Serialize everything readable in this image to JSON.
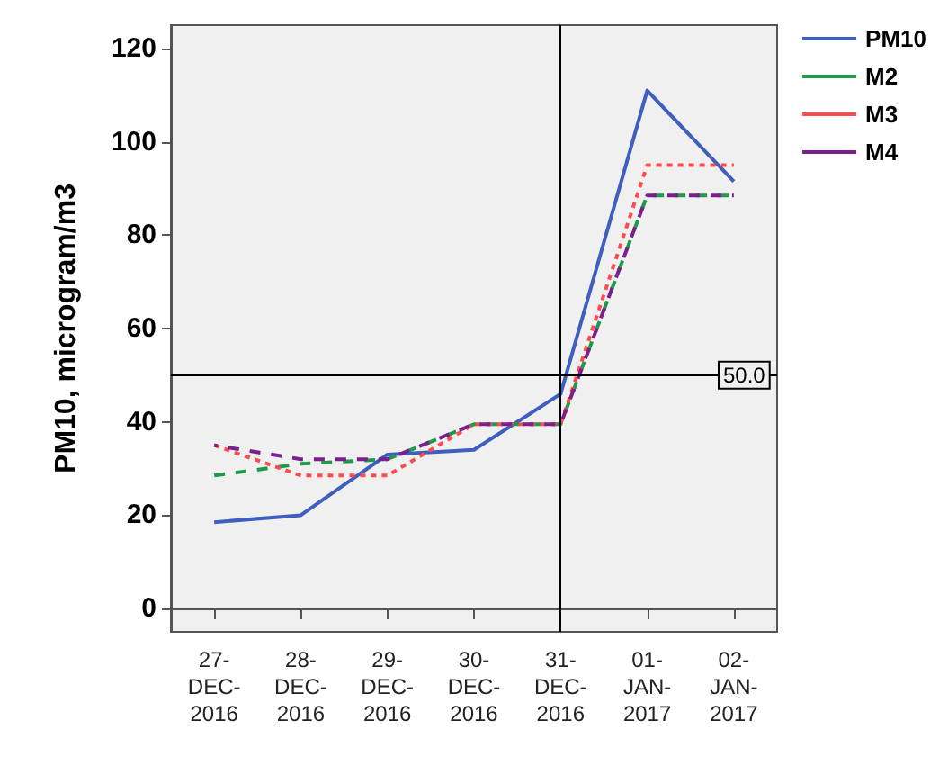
{
  "chart_data": {
    "type": "line",
    "ylabel": "PM10, microgram/m3",
    "categories": [
      "27-\nDEC-\n2016",
      "28-\nDEC-\n2016",
      "29-\nDEC-\n2016",
      "30-\nDEC-\n2016",
      "31-\nDEC-\n2016",
      "01-\nJAN-\n2017",
      "02-\nJAN-\n2017"
    ],
    "series": [
      {
        "name": "PM10",
        "color": "#3f5fbf",
        "line_style": "solid",
        "values": [
          18.5,
          20,
          33,
          34,
          46,
          111,
          91.5
        ]
      },
      {
        "name": "M2",
        "color": "#1e9a4a",
        "line_style": "dashed",
        "values": [
          28.5,
          31,
          32,
          39.5,
          39.5,
          88.5,
          88.5
        ]
      },
      {
        "name": "M3",
        "color": "#ff4b4b",
        "line_style": "dotted",
        "values": [
          35,
          28.5,
          28.5,
          39.5,
          39.5,
          95,
          95
        ]
      },
      {
        "name": "M4",
        "color": "#7a1f8c",
        "line_style": "dashed",
        "values": [
          35,
          32,
          32,
          39.5,
          39.5,
          88.5,
          88.5
        ]
      }
    ],
    "ylim": [
      -5,
      125
    ],
    "yticks": [
      0,
      20,
      40,
      60,
      80,
      100,
      120
    ],
    "ref_lines": [
      {
        "axis": "y",
        "value": 50,
        "label": "50.0"
      },
      {
        "axis": "x",
        "value": "31-\nDEC-\n2016",
        "label": null
      }
    ],
    "grid": false,
    "legend": "right",
    "marker": "none"
  }
}
